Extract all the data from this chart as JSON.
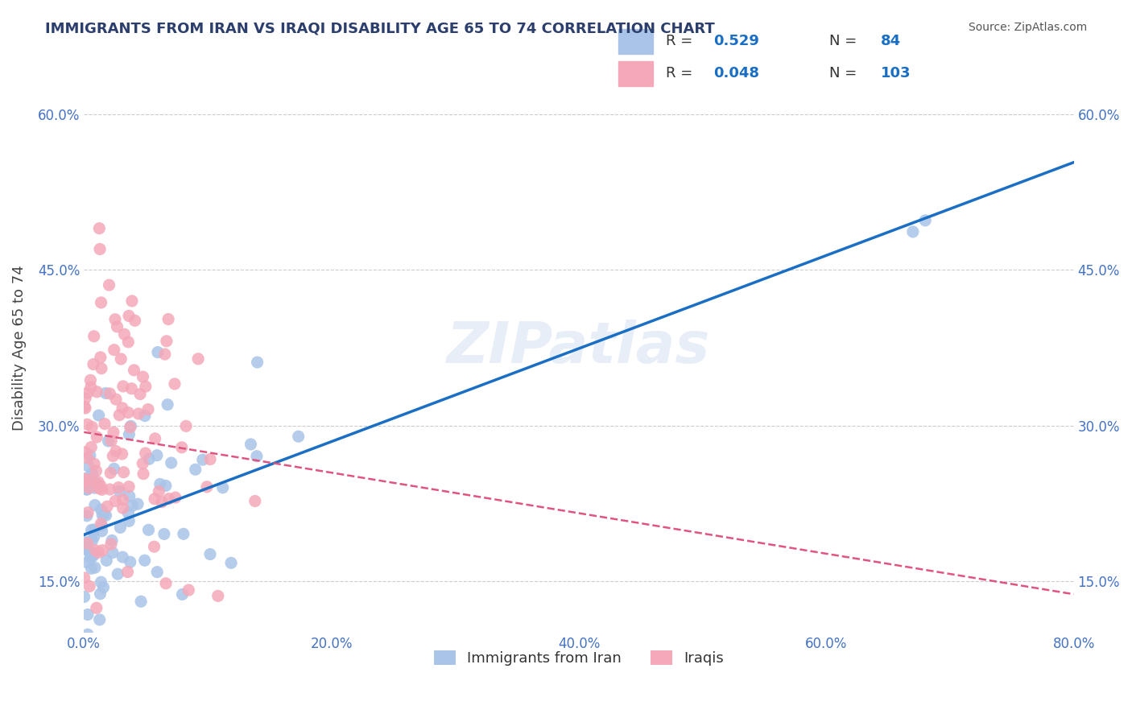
{
  "title": "IMMIGRANTS FROM IRAN VS IRAQI DISABILITY AGE 65 TO 74 CORRELATION CHART",
  "source": "Source: ZipAtlas.com",
  "xlabel_bottom": "",
  "ylabel": "Disability Age 65 to 74",
  "legend_label1": "Immigrants from Iran",
  "legend_label2": "Iraqis",
  "R1": 0.529,
  "N1": 84,
  "R2": 0.048,
  "N2": 103,
  "color1": "#aac4e8",
  "color2": "#f4a8b8",
  "line_color1": "#1a6fc4",
  "line_color2": "#e05580",
  "xmin": 0.0,
  "xmax": 0.8,
  "ymin": 0.1,
  "ymax": 0.65,
  "x_ticks": [
    0.0,
    0.2,
    0.4,
    0.6,
    0.8
  ],
  "x_tick_labels": [
    "0.0%",
    "20.0%",
    "40.0%",
    "60.0%",
    "80.0%"
  ],
  "y_ticks": [
    0.15,
    0.3,
    0.45,
    0.6
  ],
  "y_tick_labels": [
    "15.0%",
    "30.0%",
    "45.0%",
    "60.0%"
  ],
  "watermark": "ZIPatlas",
  "background_color": "#ffffff",
  "grid_color": "#cccccc",
  "title_color": "#2c3e6b",
  "tick_color": "#4472c4",
  "source_color": "#555555"
}
